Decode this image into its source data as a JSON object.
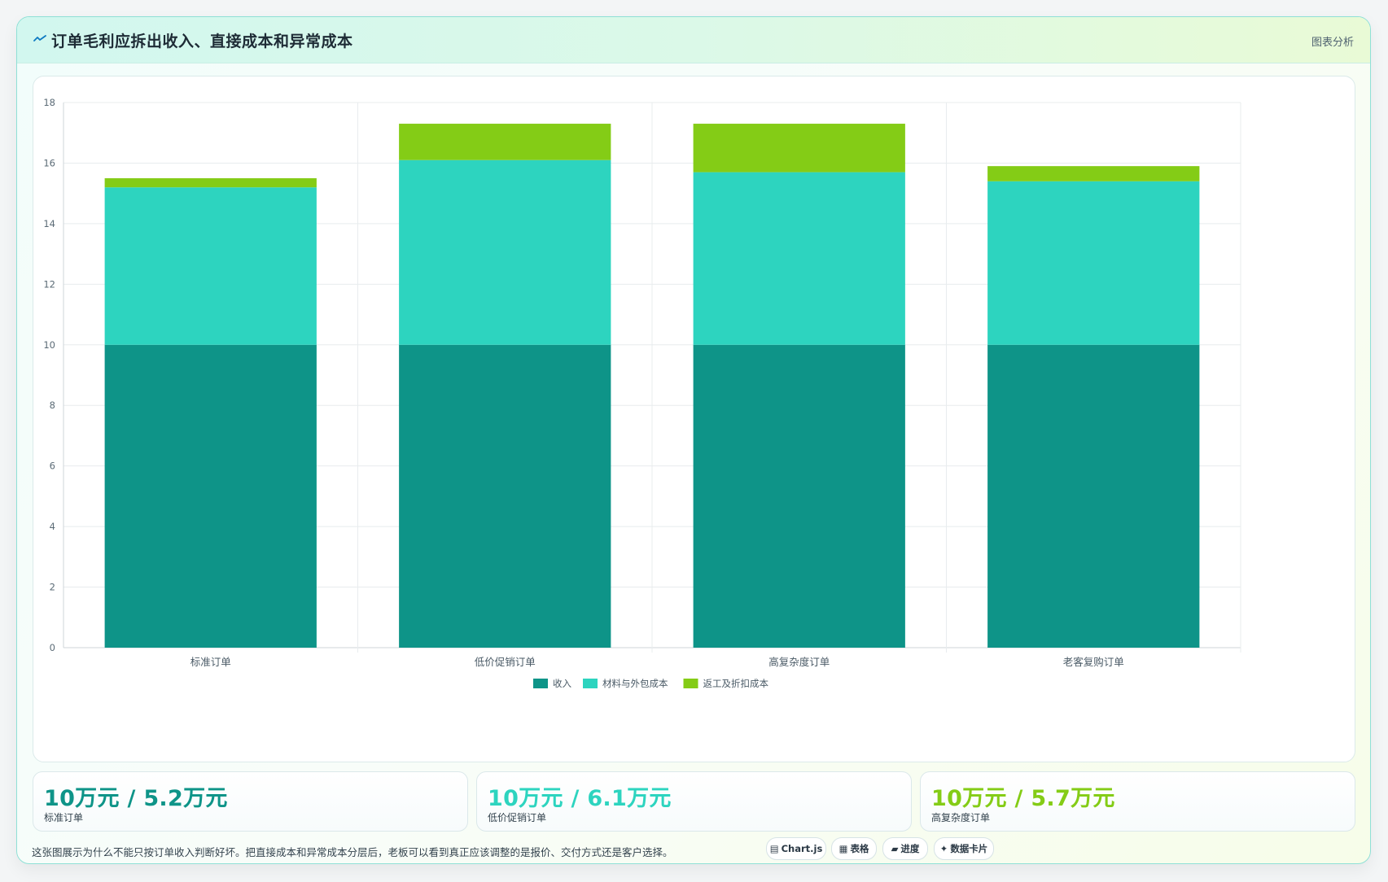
{
  "header": {
    "title": "订单毛利应拆出收入、直接成本和异常成本",
    "tag": "图表分析"
  },
  "chart_data": {
    "type": "bar",
    "stacked": true,
    "categories": [
      "标准订单",
      "低价促销订单",
      "高复杂度订单",
      "老客复购订单"
    ],
    "series": [
      {
        "name": "收入",
        "color": "#0e9488",
        "values": [
          10,
          10,
          10,
          10
        ]
      },
      {
        "name": "材料与外包成本",
        "color": "#2dd4bf",
        "values": [
          5.2,
          6.1,
          5.7,
          5.4
        ]
      },
      {
        "name": "返工及折扣成本",
        "color": "#84cc16",
        "values": [
          0.3,
          1.2,
          1.6,
          0.5
        ]
      }
    ],
    "ylim": [
      0,
      18
    ],
    "yticks": [
      "0",
      "2",
      "4",
      "6",
      "8",
      "10",
      "12",
      "14",
      "16",
      "18"
    ],
    "grid": true,
    "legend_position": "bottom"
  },
  "stats": [
    {
      "value": "10万元 / 5.2万元",
      "label": "标准订单",
      "color": "#0e9488"
    },
    {
      "value": "10万元 / 6.1万元",
      "label": "低价促销订单",
      "color": "#2dd4bf"
    },
    {
      "value": "10万元 / 5.7万元",
      "label": "高复杂度订单",
      "color": "#84cc16"
    }
  ],
  "note": "这张图展示为什么不能只按订单收入判断好坏。把直接成本和异常成本分层后，老板可以看到真正应该调整的是报价、交付方式还是客户选择。",
  "pills": [
    {
      "icon": "▤",
      "icon_name": "chart-icon",
      "label": "Chart.js"
    },
    {
      "icon": "▦",
      "icon_name": "table-icon",
      "label": "表格"
    },
    {
      "icon": "▰",
      "icon_name": "progress-icon",
      "label": "进度"
    },
    {
      "icon": "✦",
      "icon_name": "sparkle-icon",
      "label": "数据卡片"
    }
  ]
}
